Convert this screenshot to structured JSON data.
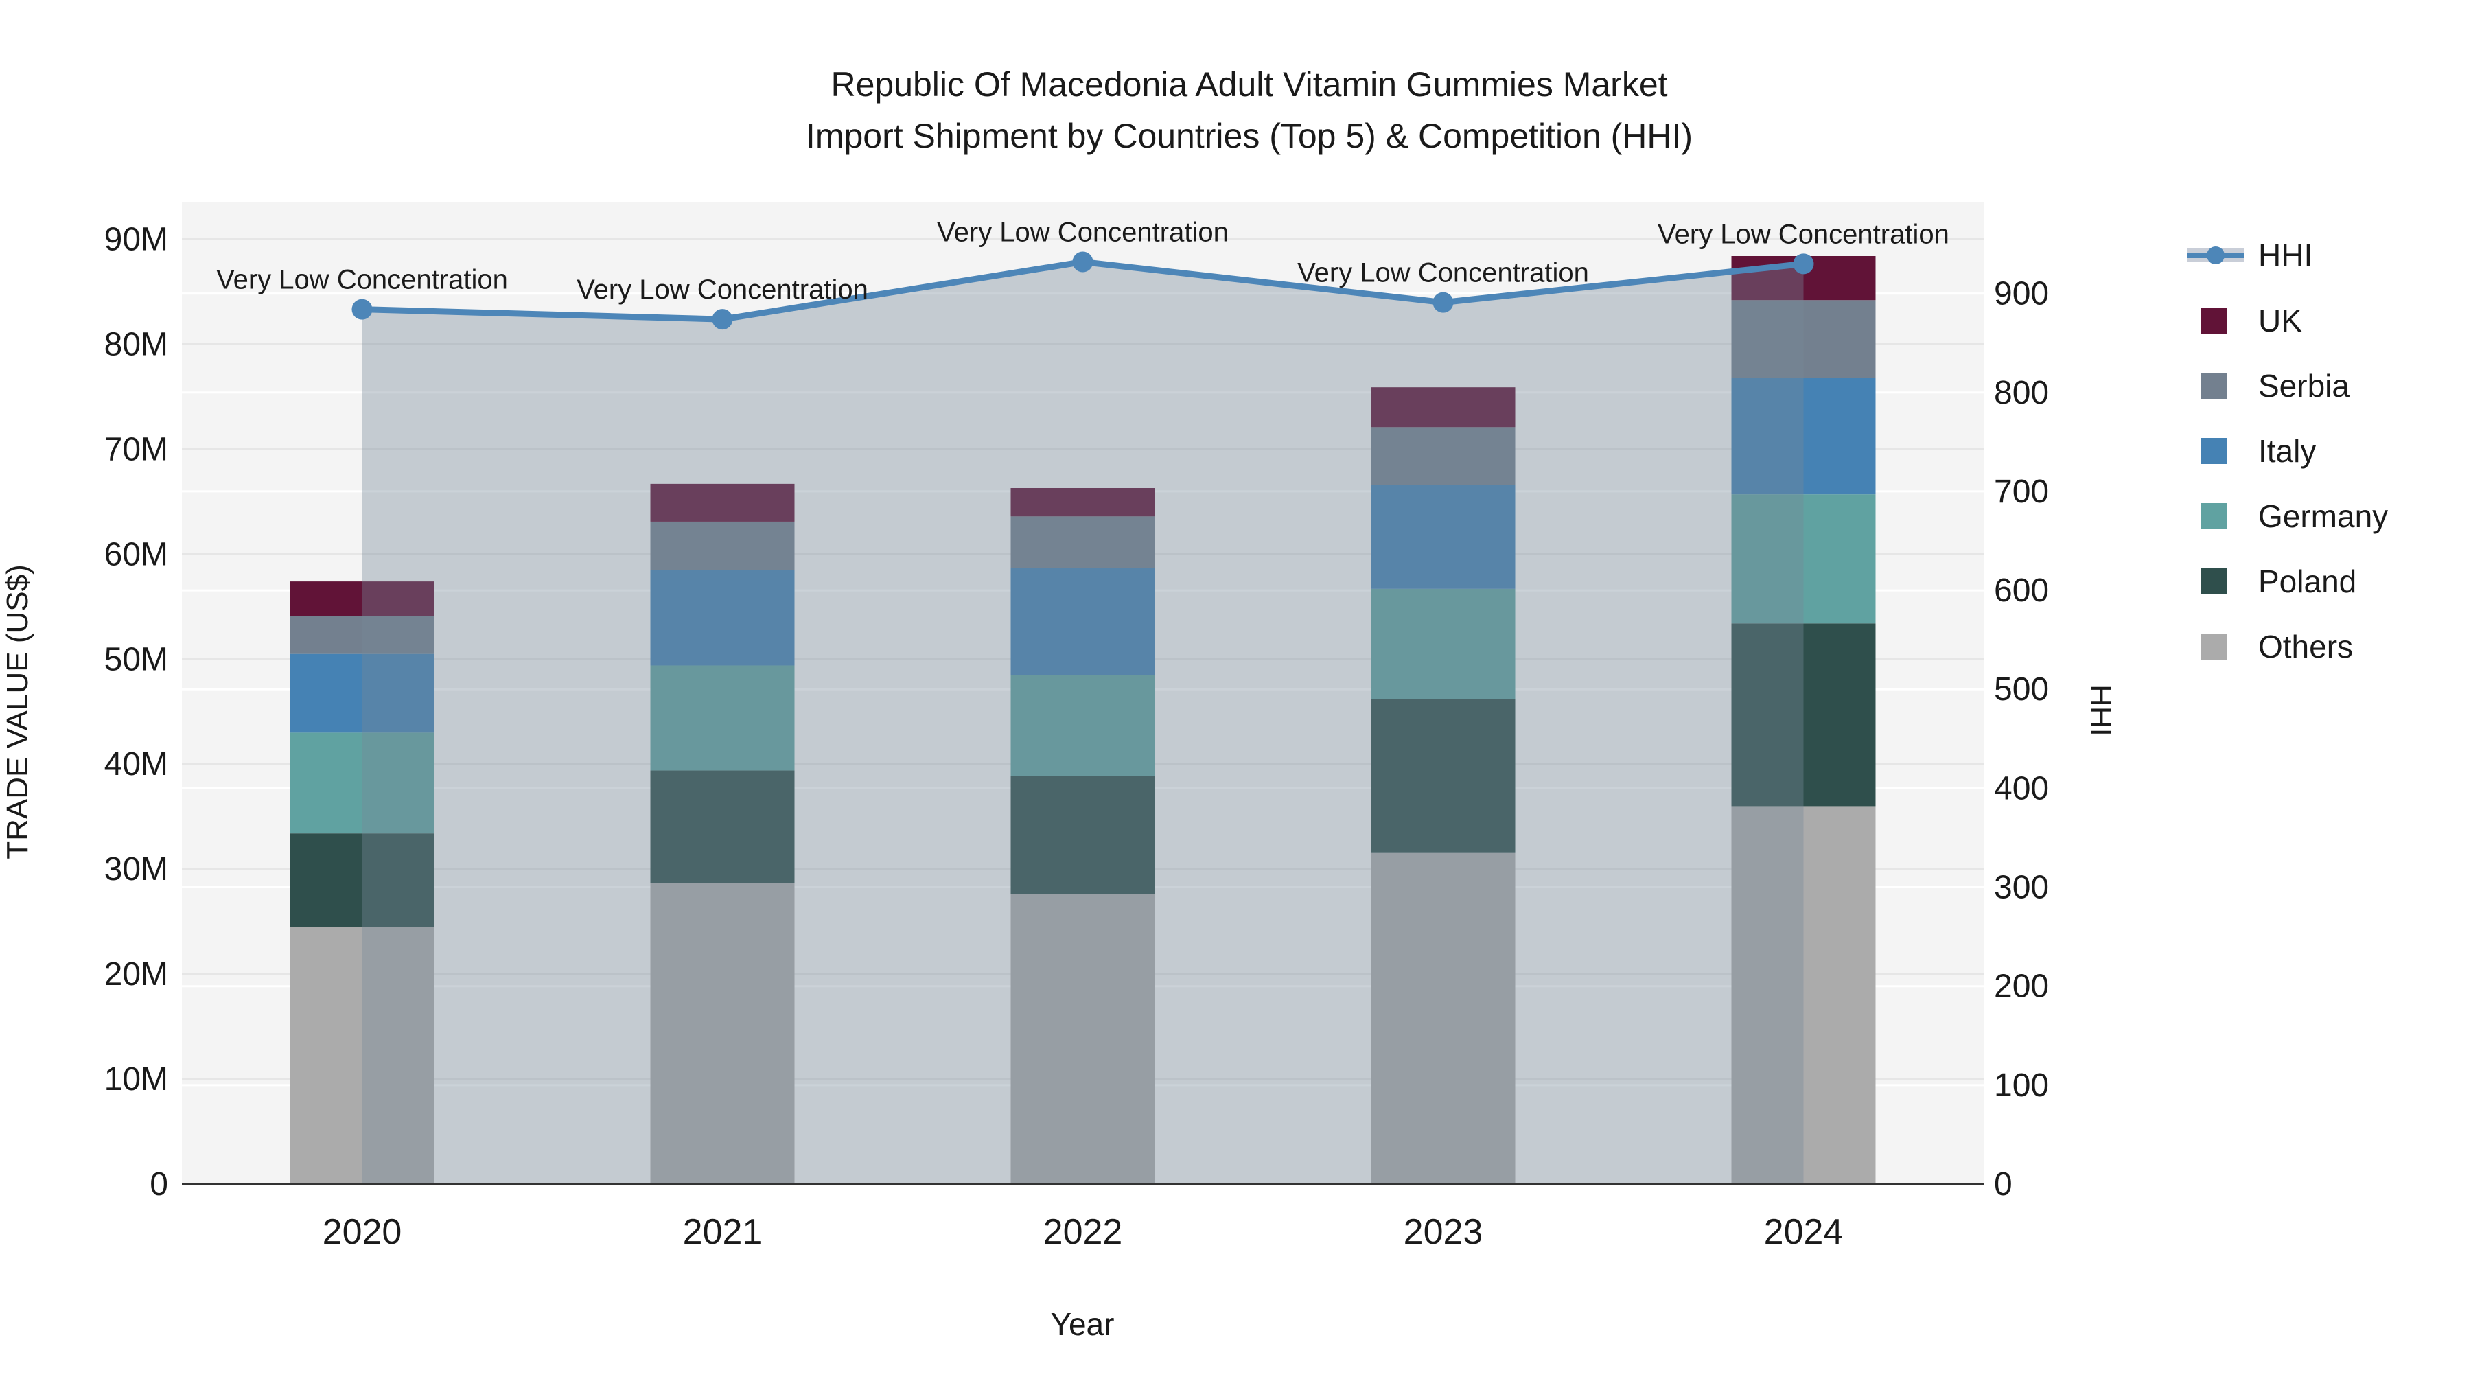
{
  "title": {
    "line1": "Republic Of Macedonia Adult Vitamin Gummies Market",
    "line2": "Import Shipment by Countries (Top 5) & Competition (HHI)"
  },
  "chart_data": {
    "type": "bar",
    "subtype": "stacked-bars-with-line-overlay",
    "categories": [
      "2020",
      "2021",
      "2022",
      "2023",
      "2024"
    ],
    "xlabel": "Year",
    "ylabel_left": "TRADE VALUE (US$)",
    "ylabel_right": "HHI",
    "yticks_left": [
      "0",
      "10M",
      "20M",
      "30M",
      "40M",
      "50M",
      "60M",
      "70M",
      "80M",
      "90M"
    ],
    "yticks_right": [
      "0",
      "100",
      "200",
      "300",
      "400",
      "500",
      "600",
      "700",
      "800",
      "900"
    ],
    "ylim_left_millions": [
      0,
      93.5
    ],
    "ylim_right": [
      0,
      992
    ],
    "grid": "horizontal",
    "values_unit": "USD millions",
    "series": [
      {
        "name": "Others",
        "color": "#ababab",
        "values": [
          24.5,
          28.7,
          27.6,
          31.6,
          36.0
        ]
      },
      {
        "name": "Poland",
        "color": "#2f4f4c",
        "values": [
          8.9,
          10.7,
          11.3,
          14.6,
          17.4
        ]
      },
      {
        "name": "Germany",
        "color": "#60a2a1",
        "values": [
          9.6,
          10.0,
          9.6,
          10.5,
          12.3
        ]
      },
      {
        "name": "Italy",
        "color": "#4582b4",
        "values": [
          7.5,
          9.1,
          10.2,
          9.9,
          11.1
        ]
      },
      {
        "name": "Serbia",
        "color": "#73808f",
        "values": [
          3.6,
          4.6,
          4.9,
          5.5,
          7.4
        ]
      },
      {
        "name": "UK",
        "color": "#611337",
        "values": [
          3.3,
          3.6,
          2.7,
          3.8,
          4.2
        ]
      }
    ],
    "line_series": {
      "name": "HHI",
      "axis": "right",
      "color": "#4d86b8",
      "area_color": "rgba(119,136,153,0.38)",
      "values": [
        884,
        874,
        932,
        891,
        930
      ]
    },
    "annotations": [
      "Very Low Concentration",
      "Very Low Concentration",
      "Very Low Concentration",
      "Very Low Concentration",
      "Very Low Concentration"
    ],
    "legend": {
      "position": "right",
      "entries": [
        "HHI",
        "UK",
        "Serbia",
        "Italy",
        "Germany",
        "Poland",
        "Others"
      ]
    },
    "colors": {
      "plot_background": "#f4f4f4",
      "grid_left_axis": "#e6e6e6",
      "grid_right_axis": "#ffffff",
      "axis_line": "#333333",
      "legend_area_band": "#c9ced8"
    }
  }
}
